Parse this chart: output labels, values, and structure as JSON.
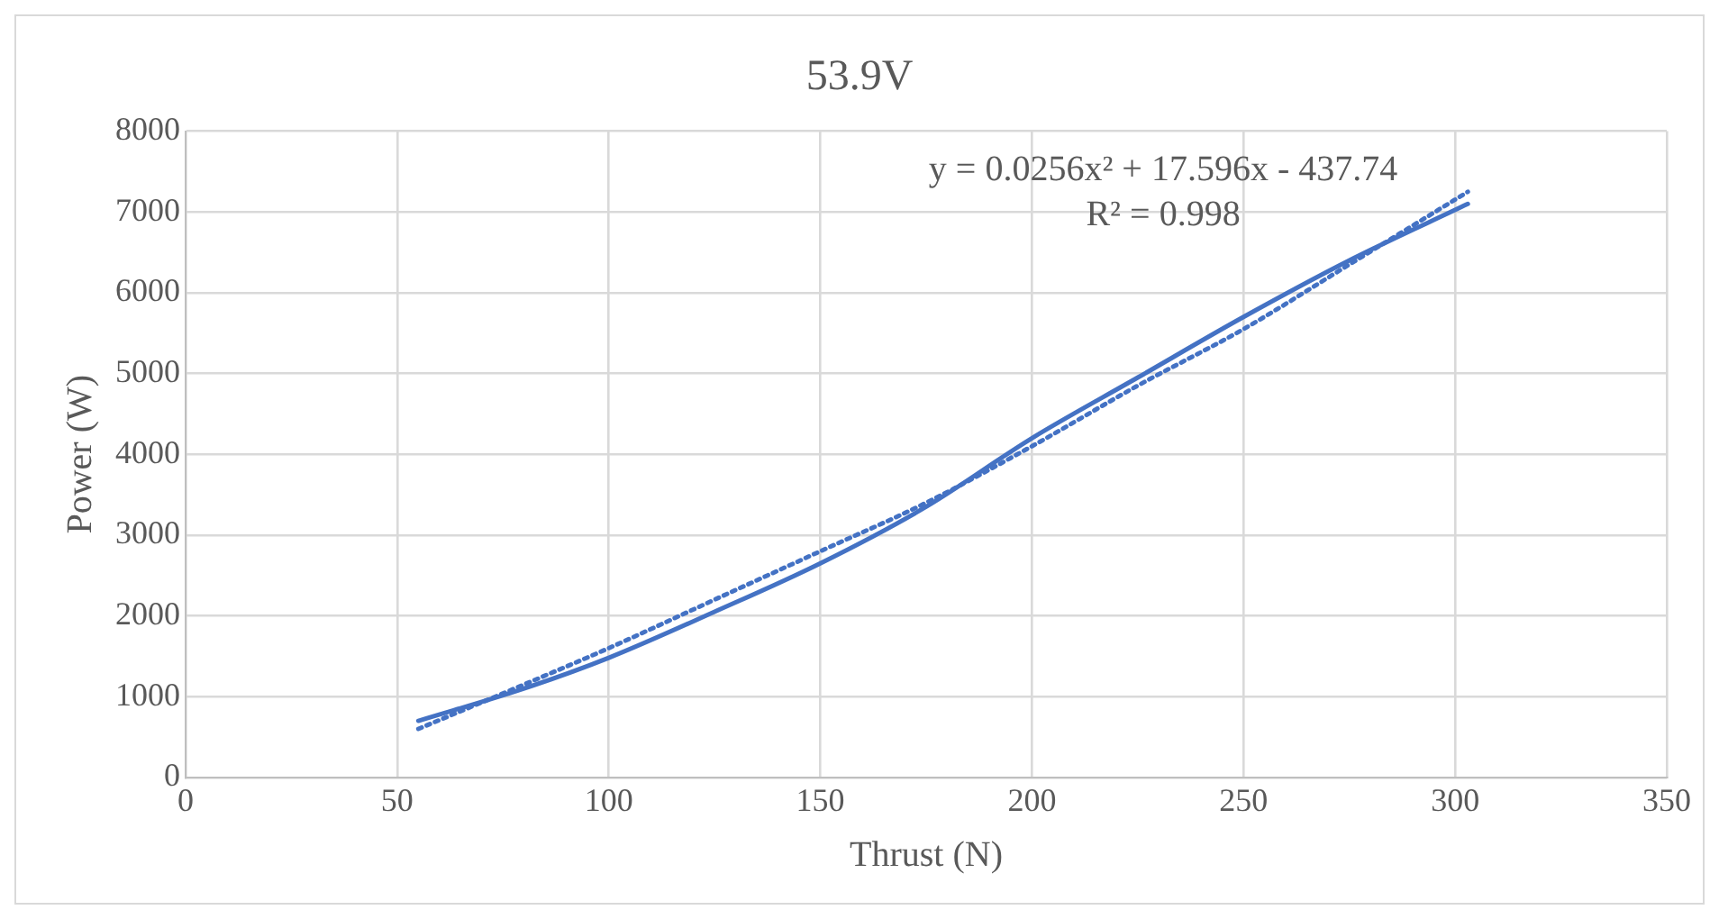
{
  "chart_data": {
    "type": "line",
    "title": "53.9V",
    "xlabel": "Thrust (N)",
    "ylabel": "Power (W)",
    "xlim": [
      0,
      350
    ],
    "xticks": [
      0,
      50,
      100,
      150,
      200,
      250,
      300,
      350
    ],
    "ylim": [
      0,
      8000
    ],
    "yticks": [
      0,
      1000,
      2000,
      3000,
      4000,
      5000,
      6000,
      7000,
      8000
    ],
    "grid": true,
    "legend": false,
    "marker": "none",
    "series": [
      {
        "color": "#4472c4",
        "line_style": "solid",
        "x": [
          55,
          80,
          100,
          125,
          150,
          175,
          200,
          225,
          250,
          275,
          303
        ],
        "values": [
          700,
          1100,
          1480,
          2050,
          2650,
          3350,
          4200,
          4950,
          5700,
          6400,
          7100
        ]
      },
      {
        "color": "#4472c4",
        "line_style": "dotted",
        "x": [
          55,
          80,
          100,
          125,
          150,
          175,
          200,
          225,
          250,
          275,
          303
        ],
        "values": [
          600,
          1150,
          1600,
          2200,
          2800,
          3400,
          4100,
          4850,
          5550,
          6350,
          7250
        ]
      }
    ],
    "annotations": [
      "y = 0.0256x² + 17.596x - 437.74",
      "R² = 0.998"
    ]
  }
}
